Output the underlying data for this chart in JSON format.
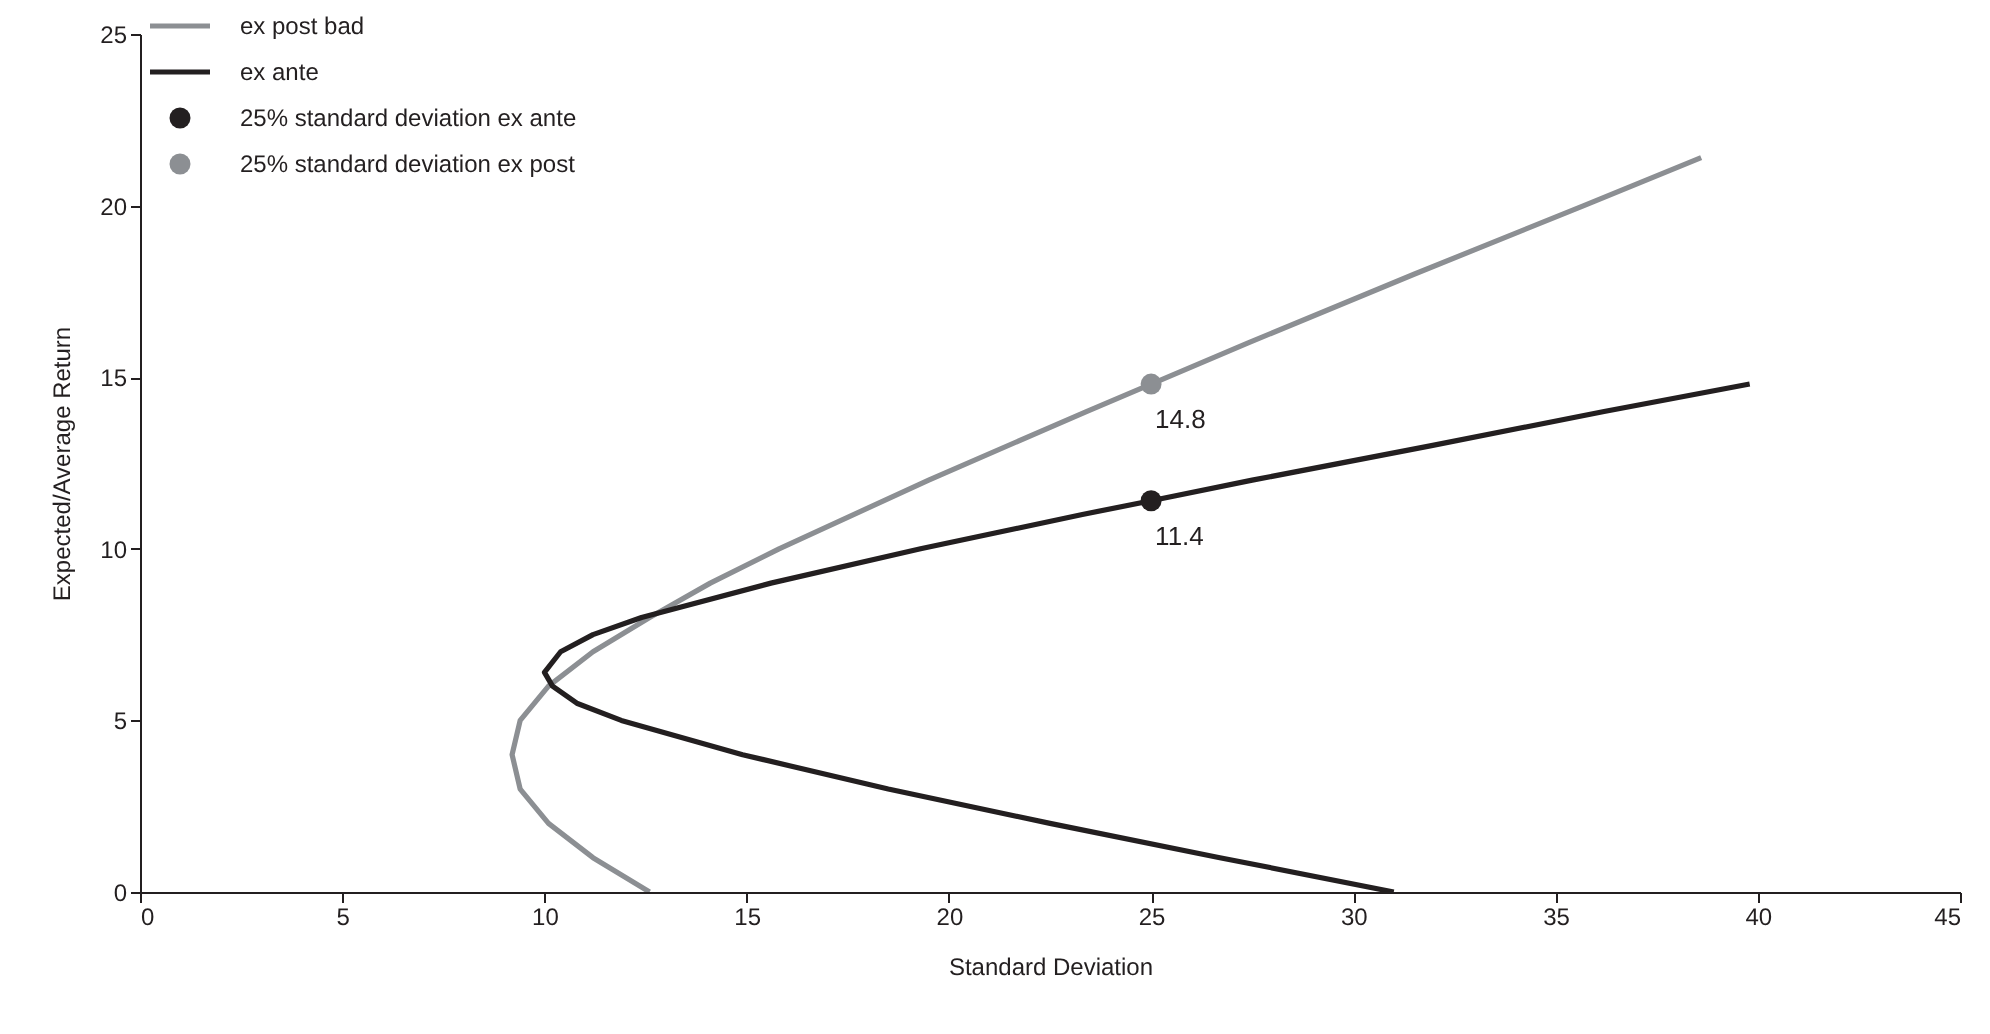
{
  "chart_data": {
    "type": "line",
    "xlabel": "Standard Deviation",
    "ylabel": "Expected/Average Return",
    "xlim": [
      0,
      45
    ],
    "ylim": [
      0,
      25
    ],
    "xticks": [
      0,
      5,
      10,
      15,
      20,
      25,
      30,
      35,
      40,
      45
    ],
    "yticks": [
      0,
      5,
      10,
      15,
      20,
      25
    ],
    "grid": false,
    "legend": "top left",
    "series": [
      {
        "name": "ex post bad",
        "color": "#8c8f93",
        "x": [
          12.6,
          11.2,
          10.1,
          9.4,
          9.2,
          9.4,
          10.1,
          11.2,
          12.6,
          14.1,
          15.8,
          19.5,
          23.4,
          25,
          27.4,
          31.5,
          35.7,
          38.6
        ],
        "values": [
          0,
          1,
          2,
          3,
          4,
          5,
          6,
          7,
          8,
          9,
          10,
          12,
          14,
          14.8,
          16,
          18,
          20,
          21.4
        ]
      },
      {
        "name": "ex ante",
        "color": "#231f20",
        "x": [
          31.0,
          26.7,
          22.5,
          18.5,
          14.9,
          11.9,
          10.8,
          10.2,
          10,
          10.4,
          11.2,
          12.4,
          15.6,
          19.3,
          23.3,
          25,
          27.5,
          31.9,
          36.2,
          39.8
        ],
        "values": [
          0,
          1,
          2,
          3,
          4,
          5,
          5.5,
          6,
          6.4,
          7,
          7.5,
          8,
          9,
          10,
          11,
          11.4,
          12,
          13,
          14,
          14.8
        ]
      },
      {
        "name": "25% standard deviation ex ante",
        "type": "scatter",
        "marker": "circle",
        "color": "#231f20",
        "x": [
          25
        ],
        "values": [
          11.4
        ],
        "value_labels": [
          "11.4"
        ]
      },
      {
        "name": "25% standard deviation ex post",
        "type": "scatter",
        "marker": "circle",
        "color": "#8c8f93",
        "x": [
          25
        ],
        "values": [
          14.8
        ],
        "value_labels": [
          "14.8"
        ]
      }
    ]
  }
}
